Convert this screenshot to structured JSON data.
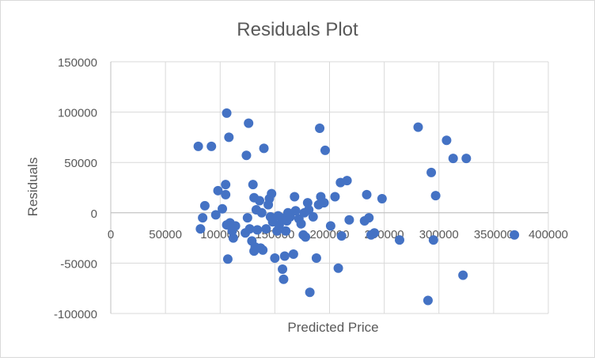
{
  "chart_data": {
    "type": "scatter",
    "title": "Residuals Plot",
    "xlabel": "Predicted Price",
    "ylabel": "Residuals",
    "xlim": [
      0,
      400000
    ],
    "ylim": [
      -100000,
      150000
    ],
    "x_ticks": [
      "0",
      "50000",
      "100000",
      "150000",
      "200000",
      "250000",
      "300000",
      "350000",
      "400000"
    ],
    "y_ticks": [
      "150000",
      "100000",
      "50000",
      "0",
      "-50000",
      "-100000"
    ],
    "x_tick_values": [
      0,
      50000,
      100000,
      150000,
      200000,
      250000,
      300000,
      350000,
      400000
    ],
    "y_tick_values": [
      150000,
      100000,
      50000,
      0,
      -50000,
      -100000
    ],
    "grid": true,
    "legend": "none",
    "marker_color": "#4472C4",
    "series": [
      {
        "points": [
          [
            80000,
            66000
          ],
          [
            82000,
            -16000
          ],
          [
            84000,
            -5000
          ],
          [
            86000,
            7000
          ],
          [
            92000,
            66000
          ],
          [
            96000,
            -2000
          ],
          [
            98000,
            22000
          ],
          [
            102000,
            4000
          ],
          [
            105000,
            28000
          ],
          [
            105000,
            18000
          ],
          [
            106000,
            99000
          ],
          [
            106000,
            -12000
          ],
          [
            107000,
            -46000
          ],
          [
            108000,
            75000
          ],
          [
            109000,
            -10000
          ],
          [
            111000,
            -18000
          ],
          [
            112000,
            -25000
          ],
          [
            114000,
            -13000
          ],
          [
            123000,
            -20000
          ],
          [
            124000,
            57000
          ],
          [
            125000,
            -5000
          ],
          [
            126000,
            89000
          ],
          [
            127000,
            -16000
          ],
          [
            129000,
            -28000
          ],
          [
            130000,
            28000
          ],
          [
            131000,
            -38000
          ],
          [
            131000,
            15000
          ],
          [
            132000,
            -34000
          ],
          [
            133000,
            3000
          ],
          [
            134000,
            -17000
          ],
          [
            136000,
            12000
          ],
          [
            137000,
            -35000
          ],
          [
            138000,
            0
          ],
          [
            139000,
            -37000
          ],
          [
            140000,
            64000
          ],
          [
            142000,
            -16000
          ],
          [
            144000,
            8000
          ],
          [
            145000,
            14000
          ],
          [
            146000,
            -4000
          ],
          [
            147000,
            19000
          ],
          [
            148000,
            -9000
          ],
          [
            150000,
            -45000
          ],
          [
            152000,
            -18000
          ],
          [
            153000,
            -3000
          ],
          [
            154000,
            -12000
          ],
          [
            156000,
            -5000
          ],
          [
            157000,
            -56000
          ],
          [
            158000,
            -66000
          ],
          [
            159000,
            -43000
          ],
          [
            160000,
            -18000
          ],
          [
            161000,
            -8000
          ],
          [
            162000,
            0
          ],
          [
            164000,
            -4000
          ],
          [
            167000,
            -41000
          ],
          [
            168000,
            16000
          ],
          [
            169000,
            2000
          ],
          [
            172000,
            -6000
          ],
          [
            174000,
            -11000
          ],
          [
            176000,
            -22000
          ],
          [
            177000,
            0
          ],
          [
            178000,
            -24000
          ],
          [
            180000,
            10000
          ],
          [
            181000,
            3000
          ],
          [
            182000,
            -79000
          ],
          [
            185000,
            -4000
          ],
          [
            188000,
            -45000
          ],
          [
            190000,
            8000
          ],
          [
            191000,
            84000
          ],
          [
            192000,
            16000
          ],
          [
            195000,
            10000
          ],
          [
            196000,
            62000
          ],
          [
            201000,
            -13000
          ],
          [
            205000,
            16000
          ],
          [
            208000,
            -55000
          ],
          [
            210000,
            30000
          ],
          [
            211000,
            -23000
          ],
          [
            216000,
            32000
          ],
          [
            218000,
            -7000
          ],
          [
            232000,
            -8000
          ],
          [
            234000,
            18000
          ],
          [
            236000,
            -5000
          ],
          [
            238000,
            -22000
          ],
          [
            241000,
            -20000
          ],
          [
            248000,
            14000
          ],
          [
            264000,
            -27000
          ],
          [
            281000,
            85000
          ],
          [
            290000,
            -87000
          ],
          [
            293000,
            40000
          ],
          [
            295000,
            -27000
          ],
          [
            297000,
            17000
          ],
          [
            307000,
            72000
          ],
          [
            313000,
            54000
          ],
          [
            322000,
            -62000
          ],
          [
            325000,
            54000
          ],
          [
            369000,
            -22000
          ]
        ]
      }
    ]
  }
}
